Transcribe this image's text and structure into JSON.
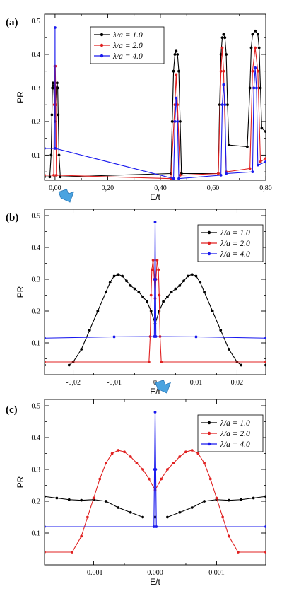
{
  "arrow_color": "#4aa3e0",
  "chart_data": [
    {
      "panel_label": "(a)",
      "type": "line",
      "xlabel": "E/t",
      "ylabel": "PR",
      "xlim": [
        -0.04,
        0.8
      ],
      "ylim": [
        0.025,
        0.52
      ],
      "xticks": [
        0.0,
        0.2,
        0.4,
        0.6,
        0.8
      ],
      "xtick_labels": [
        "0,00",
        "0,20",
        "0,40",
        "0,60",
        "0,80"
      ],
      "yticks": [
        0.1,
        0.2,
        0.3,
        0.4,
        0.5
      ],
      "ytick_labels": [
        "0.1",
        "0.2",
        "0.3",
        "0.4",
        "0.5"
      ],
      "legend_position": "top-center",
      "series": [
        {
          "name": "λ/a = 1.0",
          "color": "#000000",
          "segments": [
            [
              [
                -0.04,
                0.035
              ],
              [
                -0.02,
                0.035
              ],
              [
                -0.015,
                0.1
              ],
              [
                -0.012,
                0.22
              ],
              [
                -0.01,
                0.3
              ],
              [
                -0.008,
                0.315
              ],
              [
                -0.005,
                0.3
              ],
              [
                0.0,
                0.2
              ],
              [
                0.005,
                0.3
              ],
              [
                0.008,
                0.315
              ],
              [
                0.01,
                0.3
              ],
              [
                0.012,
                0.22
              ],
              [
                0.015,
                0.1
              ],
              [
                0.02,
                0.035
              ],
              [
                0.44,
                0.045
              ],
              [
                0.445,
                0.2
              ],
              [
                0.45,
                0.35
              ],
              [
                0.455,
                0.4
              ],
              [
                0.46,
                0.41
              ],
              [
                0.465,
                0.4
              ],
              [
                0.47,
                0.35
              ],
              [
                0.475,
                0.2
              ],
              [
                0.48,
                0.045
              ],
              [
                0.62,
                0.045
              ],
              [
                0.625,
                0.25
              ],
              [
                0.63,
                0.4
              ],
              [
                0.635,
                0.45
              ],
              [
                0.64,
                0.46
              ],
              [
                0.645,
                0.45
              ],
              [
                0.65,
                0.4
              ],
              [
                0.655,
                0.25
              ],
              [
                0.66,
                0.13
              ],
              [
                0.73,
                0.125
              ],
              [
                0.74,
                0.3
              ],
              [
                0.745,
                0.42
              ],
              [
                0.75,
                0.46
              ],
              [
                0.76,
                0.47
              ],
              [
                0.77,
                0.46
              ],
              [
                0.775,
                0.42
              ],
              [
                0.78,
                0.3
              ],
              [
                0.785,
                0.18
              ],
              [
                0.8,
                0.17
              ]
            ]
          ]
        },
        {
          "name": "λ/a = 2.0",
          "color": "#e02020",
          "segments": [
            [
              [
                -0.04,
                0.04
              ],
              [
                -0.005,
                0.04
              ],
              [
                -0.003,
                0.25
              ],
              [
                -0.001,
                0.365
              ],
              [
                0.0,
                0.25
              ],
              [
                0.001,
                0.365
              ],
              [
                0.003,
                0.25
              ],
              [
                0.005,
                0.04
              ],
              [
                0.44,
                0.03
              ],
              [
                0.455,
                0.25
              ],
              [
                0.46,
                0.34
              ],
              [
                0.465,
                0.25
              ],
              [
                0.475,
                0.04
              ],
              [
                0.62,
                0.045
              ],
              [
                0.63,
                0.35
              ],
              [
                0.635,
                0.42
              ],
              [
                0.64,
                0.35
              ],
              [
                0.65,
                0.05
              ],
              [
                0.74,
                0.06
              ],
              [
                0.75,
                0.35
              ],
              [
                0.76,
                0.42
              ],
              [
                0.77,
                0.35
              ],
              [
                0.78,
                0.08
              ],
              [
                0.8,
                0.09
              ]
            ]
          ]
        },
        {
          "name": "λ/a = 4.0",
          "color": "#1a1aee",
          "segments": [
            [
              [
                -0.04,
                0.12
              ],
              [
                -0.0005,
                0.12
              ],
              [
                0.0,
                0.48
              ],
              [
                0.0005,
                0.12
              ],
              [
                0.45,
                0.03
              ],
              [
                0.455,
                0.2
              ],
              [
                0.46,
                0.27
              ],
              [
                0.465,
                0.2
              ],
              [
                0.47,
                0.03
              ],
              [
                0.63,
                0.04
              ],
              [
                0.635,
                0.25
              ],
              [
                0.64,
                0.31
              ],
              [
                0.645,
                0.25
              ],
              [
                0.65,
                0.045
              ],
              [
                0.75,
                0.05
              ],
              [
                0.755,
                0.3
              ],
              [
                0.76,
                0.36
              ],
              [
                0.765,
                0.3
              ],
              [
                0.77,
                0.07
              ],
              [
                0.8,
                0.08
              ]
            ]
          ]
        }
      ]
    },
    {
      "panel_label": "(b)",
      "type": "line",
      "xlabel": "E/t",
      "ylabel": "PR",
      "xlim": [
        -0.027,
        0.027
      ],
      "ylim": [
        0.0,
        0.52
      ],
      "xticks": [
        -0.02,
        -0.01,
        0.0,
        0.01,
        0.02
      ],
      "xtick_labels": [
        "-0,02",
        "-0,01",
        "0",
        "0,01",
        "0,02"
      ],
      "yticks": [
        0.1,
        0.2,
        0.3,
        0.4,
        0.5
      ],
      "ytick_labels": [
        "0.1",
        "0.2",
        "0.3",
        "0.4",
        "0.5"
      ],
      "legend_position": "top-right",
      "series": [
        {
          "name": "λ/a = 1.0",
          "color": "#000000",
          "segments": [
            [
              [
                -0.027,
                0.03
              ],
              [
                -0.021,
                0.03
              ],
              [
                -0.02,
                0.04
              ],
              [
                -0.018,
                0.08
              ],
              [
                -0.016,
                0.14
              ],
              [
                -0.014,
                0.2
              ],
              [
                -0.012,
                0.26
              ],
              [
                -0.011,
                0.29
              ],
              [
                -0.01,
                0.31
              ],
              [
                -0.009,
                0.315
              ],
              [
                -0.008,
                0.31
              ],
              [
                -0.007,
                0.295
              ],
              [
                -0.006,
                0.28
              ],
              [
                -0.005,
                0.27
              ],
              [
                -0.004,
                0.26
              ],
              [
                -0.003,
                0.245
              ],
              [
                -0.002,
                0.23
              ],
              [
                -0.001,
                0.2
              ],
              [
                0.0,
                0.16
              ],
              [
                0.001,
                0.2
              ],
              [
                0.002,
                0.23
              ],
              [
                0.003,
                0.245
              ],
              [
                0.004,
                0.26
              ],
              [
                0.005,
                0.27
              ],
              [
                0.006,
                0.28
              ],
              [
                0.007,
                0.295
              ],
              [
                0.008,
                0.31
              ],
              [
                0.009,
                0.315
              ],
              [
                0.01,
                0.31
              ],
              [
                0.011,
                0.29
              ],
              [
                0.012,
                0.26
              ],
              [
                0.014,
                0.2
              ],
              [
                0.016,
                0.14
              ],
              [
                0.018,
                0.08
              ],
              [
                0.02,
                0.04
              ],
              [
                0.021,
                0.03
              ],
              [
                0.027,
                0.03
              ]
            ]
          ]
        },
        {
          "name": "λ/a = 2.0",
          "color": "#e02020",
          "segments": [
            [
              [
                -0.027,
                0.04
              ],
              [
                -0.0015,
                0.04
              ],
              [
                -0.0012,
                0.12
              ],
              [
                -0.001,
                0.25
              ],
              [
                -0.0008,
                0.33
              ],
              [
                -0.0005,
                0.36
              ],
              [
                -0.0002,
                0.3
              ],
              [
                0.0,
                0.24
              ],
              [
                0.0002,
                0.3
              ],
              [
                0.0005,
                0.36
              ],
              [
                0.0008,
                0.33
              ],
              [
                0.001,
                0.25
              ],
              [
                0.0012,
                0.12
              ],
              [
                0.0015,
                0.04
              ],
              [
                0.027,
                0.04
              ]
            ]
          ]
        },
        {
          "name": "λ/a = 4.0",
          "color": "#1a1aee",
          "segments": [
            [
              [
                -0.027,
                0.115
              ],
              [
                -0.01,
                0.119
              ],
              [
                -0.0002,
                0.12
              ],
              [
                -0.0001,
                0.3
              ],
              [
                0.0,
                0.48
              ],
              [
                0.0001,
                0.3
              ],
              [
                0.0002,
                0.12
              ],
              [
                0.01,
                0.119
              ],
              [
                0.027,
                0.115
              ]
            ]
          ]
        }
      ]
    },
    {
      "panel_label": "(c)",
      "type": "line",
      "xlabel": "E/t",
      "ylabel": "PR",
      "xlim": [
        -0.0018,
        0.0018
      ],
      "ylim": [
        0.0,
        0.52
      ],
      "xticks": [
        -0.001,
        0.0,
        0.001
      ],
      "xtick_labels": [
        "-0.001",
        "0.000",
        "0.001"
      ],
      "yticks": [
        0.1,
        0.2,
        0.3,
        0.4,
        0.5
      ],
      "ytick_labels": [
        "0.1",
        "0.2",
        "0.3",
        "0.4",
        "0.5"
      ],
      "legend_position": "top-right",
      "series": [
        {
          "name": "λ/a = 1.0",
          "color": "#000000",
          "segments": [
            [
              [
                -0.0018,
                0.215
              ],
              [
                -0.0016,
                0.21
              ],
              [
                -0.0014,
                0.205
              ],
              [
                -0.0012,
                0.203
              ],
              [
                -0.001,
                0.205
              ],
              [
                -0.0008,
                0.2
              ],
              [
                -0.0006,
                0.18
              ],
              [
                -0.0004,
                0.165
              ],
              [
                -0.0002,
                0.15
              ],
              [
                0.0,
                0.15
              ],
              [
                0.0002,
                0.15
              ],
              [
                0.0004,
                0.165
              ],
              [
                0.0006,
                0.18
              ],
              [
                0.0008,
                0.2
              ],
              [
                0.001,
                0.205
              ],
              [
                0.0012,
                0.203
              ],
              [
                0.0014,
                0.205
              ],
              [
                0.0016,
                0.21
              ],
              [
                0.0018,
                0.215
              ]
            ]
          ]
        },
        {
          "name": "λ/a = 2.0",
          "color": "#e02020",
          "segments": [
            [
              [
                -0.0018,
                0.04
              ],
              [
                -0.00135,
                0.04
              ],
              [
                -0.0012,
                0.09
              ],
              [
                -0.0011,
                0.15
              ],
              [
                -0.001,
                0.21
              ],
              [
                -0.0009,
                0.27
              ],
              [
                -0.0008,
                0.32
              ],
              [
                -0.0007,
                0.35
              ],
              [
                -0.0006,
                0.36
              ],
              [
                -0.0005,
                0.355
              ],
              [
                -0.0004,
                0.34
              ],
              [
                -0.0003,
                0.32
              ],
              [
                -0.0002,
                0.3
              ],
              [
                -0.0001,
                0.27
              ],
              [
                0.0,
                0.235
              ],
              [
                0.0001,
                0.27
              ],
              [
                0.0002,
                0.3
              ],
              [
                0.0003,
                0.32
              ],
              [
                0.0004,
                0.34
              ],
              [
                0.0005,
                0.355
              ],
              [
                0.0006,
                0.36
              ],
              [
                0.0007,
                0.35
              ],
              [
                0.0008,
                0.32
              ],
              [
                0.0009,
                0.27
              ],
              [
                0.001,
                0.21
              ],
              [
                0.0011,
                0.15
              ],
              [
                0.0012,
                0.09
              ],
              [
                0.00135,
                0.04
              ],
              [
                0.0018,
                0.04
              ]
            ]
          ]
        },
        {
          "name": "λ/a = 4.0",
          "color": "#1a1aee",
          "segments": [
            [
              [
                -0.0018,
                0.12
              ],
              [
                -2e-05,
                0.12
              ],
              [
                -1e-05,
                0.3
              ],
              [
                0.0,
                0.48
              ],
              [
                1e-05,
                0.3
              ],
              [
                2e-05,
                0.12
              ],
              [
                0.0018,
                0.12
              ]
            ]
          ]
        }
      ]
    }
  ]
}
